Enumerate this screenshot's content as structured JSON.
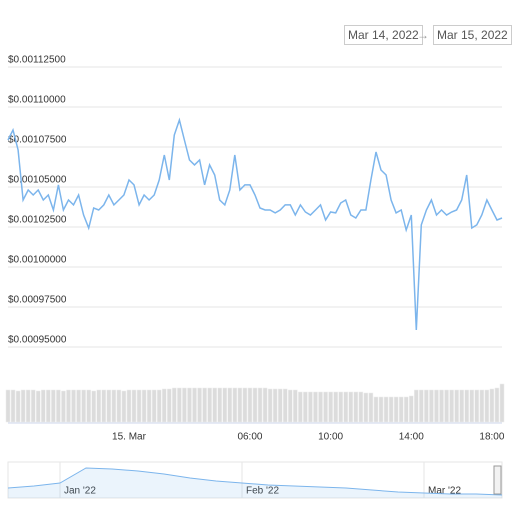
{
  "date_range": {
    "from": "Mar 14, 2022",
    "separator": "→",
    "to": "Mar 15, 2022"
  },
  "chart_data": [
    {
      "type": "line",
      "categories": [
        null,
        null,
        null,
        null,
        null,
        null,
        null,
        null,
        null,
        null,
        null,
        null,
        null,
        null,
        null,
        null,
        null,
        null,
        null,
        null,
        null,
        null,
        null,
        null,
        "15. Mar",
        null,
        null,
        null,
        null,
        null,
        null,
        null,
        null,
        null,
        null,
        null,
        null,
        null,
        null,
        null,
        null,
        null,
        null,
        null,
        null,
        null,
        null,
        null,
        "06:00",
        null,
        null,
        null,
        null,
        null,
        null,
        null,
        null,
        null,
        null,
        null,
        null,
        null,
        null,
        null,
        "10:00",
        null,
        null,
        null,
        null,
        null,
        null,
        null,
        null,
        null,
        null,
        null,
        null,
        null,
        null,
        null,
        "14:00",
        null,
        null,
        null,
        null,
        null,
        null,
        null,
        null,
        null,
        null,
        null,
        null,
        null,
        null,
        null,
        "18:00",
        null,
        null
      ],
      "series": [
        {
          "type": "line",
          "color": "#7cb5ec",
          "values": [
            0.0010794,
            0.0010856,
            0.0010731,
            0.0010419,
            0.0010481,
            0.001045,
            0.0010481,
            0.0010419,
            0.001045,
            0.0010356,
            0.0010513,
            0.0010356,
            0.0010419,
            0.0010388,
            0.001045,
            0.0010325,
            0.0010244,
            0.0010369,
            0.0010356,
            0.0010388,
            0.001045,
            0.0010388,
            0.0010419,
            0.001045,
            0.0010544,
            0.0010513,
            0.0010388,
            0.001045,
            0.0010419,
            0.001045,
            0.0010544,
            0.00107,
            0.0010544,
            0.0010825,
            0.0010919,
            0.0010794,
            0.0010669,
            0.0010638,
            0.0010669,
            0.0010513,
            0.0010638,
            0.0010575,
            0.0010419,
            0.0010388,
            0.0010481,
            0.00107,
            0.0010481,
            0.0010513,
            0.0010513,
            0.001045,
            0.0010369,
            0.0010356,
            0.0010356,
            0.0010338,
            0.0010356,
            0.0010388,
            0.0010388,
            0.0010325,
            0.0010388,
            0.0010344,
            0.0010325,
            0.0010356,
            0.0010388,
            0.0010294,
            0.0010344,
            0.0010338,
            0.00104,
            0.0010419,
            0.0010325,
            0.0010306,
            0.0010356,
            0.0010356,
            0.0010544,
            0.0010719,
            0.0010606,
            0.0010575,
            0.0010419,
            0.0010338,
            0.0010356,
            0.0010231,
            0.0010325,
            0.0009606,
            0.0010263,
            0.0010356,
            0.0010419,
            0.0010325,
            0.0010356,
            0.0010325,
            0.0010344,
            0.0010356,
            0.0010419,
            0.0010575,
            0.0010244,
            0.0010263,
            0.0010325,
            0.0010419,
            0.0010356,
            0.0010294,
            0.0010306
          ]
        },
        {
          "type": "bar",
          "axis": "y2",
          "color": "#dcdcdc",
          "values": [
            32,
            32,
            31,
            32,
            32,
            32,
            31,
            32,
            32,
            32,
            32,
            31,
            32,
            32,
            32,
            32,
            32,
            31,
            32,
            32,
            32,
            32,
            32,
            31,
            32,
            32,
            32,
            32,
            32,
            32,
            32,
            33,
            33,
            34,
            34,
            34,
            34,
            34,
            34,
            34,
            34,
            34,
            34,
            34,
            34,
            34,
            34,
            34,
            34,
            34,
            34,
            34,
            33,
            33,
            33,
            33,
            32,
            32,
            30,
            30,
            30,
            30,
            30,
            30,
            30,
            30,
            30,
            30,
            30,
            30,
            30,
            29,
            29,
            25,
            25,
            25,
            25,
            25,
            25,
            25,
            26,
            32,
            32,
            32,
            32,
            32,
            32,
            32,
            32,
            32,
            32,
            32,
            32,
            32,
            32,
            32,
            33,
            34,
            38
          ]
        }
      ],
      "ylim": [
        0.00095,
        0.001125
      ],
      "yticks": [
        {
          "value": 0.00095,
          "label": "$0.00095000"
        },
        {
          "value": 0.000975,
          "label": "$0.00097500"
        },
        {
          "value": 0.001,
          "label": "$0.00100000"
        },
        {
          "value": 0.001025,
          "label": "$0.00102500"
        },
        {
          "value": 0.00105,
          "label": "$0.00105000"
        },
        {
          "value": 0.001075,
          "label": "$0.00107500"
        },
        {
          "value": 0.0011,
          "label": "$0.00110000"
        },
        {
          "value": 0.001125,
          "label": "$0.00112500"
        }
      ],
      "y2lim": [
        0,
        40
      ],
      "grid": true
    },
    {
      "type": "line",
      "categories": [
        null,
        null,
        "Jan '22",
        null,
        null,
        null,
        null,
        null,
        null,
        "Feb '22",
        null,
        null,
        null,
        null,
        null,
        null,
        "Mar '22",
        null,
        null,
        null
      ],
      "series": [
        {
          "type": "line",
          "color": "#7cb5ec",
          "values": [
            0.0009667,
            0.001,
            0.00105,
            0.0013,
            0.0012833,
            0.00125,
            0.0012,
            0.0011333,
            0.0010833,
            0.00105,
            0.0010167,
            0.001,
            0.0009833,
            0.0009667,
            0.0009333,
            0.0009,
            0.0008833,
            0.0008667,
            0.0008667,
            0.00085
          ]
        }
      ],
      "ylim": [
        0.0008,
        0.0014
      ]
    }
  ]
}
